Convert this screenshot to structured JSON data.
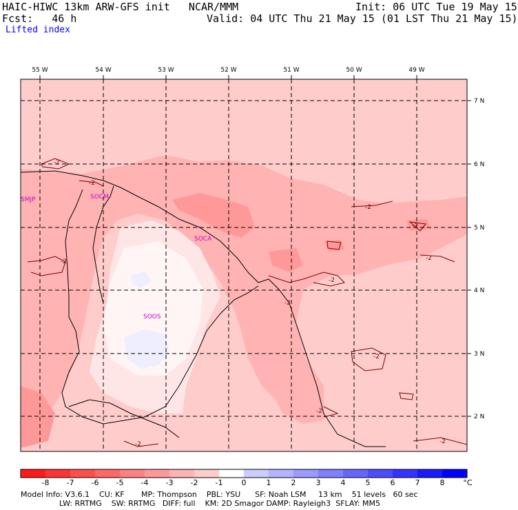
{
  "header": {
    "left_line1": "HAIC-HIWC 13km ARW-GFS init   NCAR/MMM",
    "left_line2": "Fcst:   46 h",
    "init": "Init: 06 UTC Tue 19 May 15",
    "valid": "Valid: 04 UTC Thu 21 May 15 (01 LST Thu 21 May 15)",
    "field": "Lifted index"
  },
  "map": {
    "lon_labels": [
      "55 W",
      "54 W",
      "53 W",
      "52 W",
      "51 W",
      "50 W",
      "49 W"
    ],
    "lat_labels": [
      "7 N",
      "6 N",
      "5 N",
      "4 N",
      "3 N",
      "2 N"
    ],
    "stations": [
      {
        "id": "SMJP"
      },
      {
        "id": "SOCM"
      },
      {
        "id": "SOCA"
      },
      {
        "id": "SOOS"
      }
    ],
    "contour_label": "-2"
  },
  "colorbar": {
    "labels": [
      "-8",
      "-7",
      "-6",
      "-5",
      "-4",
      "-3",
      "-2",
      "-1",
      "0",
      "1",
      "2",
      "3",
      "4",
      "5",
      "6",
      "7",
      "8"
    ],
    "unit": "°C",
    "colors": [
      "#ff1a1a",
      "#ff3333",
      "#ff4d4d",
      "#ff6666",
      "#ff8080",
      "#ff9999",
      "#ffb3b3",
      "#ffcccc",
      "#ffffff",
      "#ccccff",
      "#b3b3ff",
      "#9999ff",
      "#8080ff",
      "#6666ff",
      "#4d4dff",
      "#3333ff",
      "#1a1aff",
      "#0000ff"
    ]
  },
  "footer": {
    "line1": "Model Info: V3.6.1    CU: KF       MP: Thompson    PBL: YSU      SF: Noah LSM     13 km    51 levels   60 sec",
    "line2": "                LW: RRTMG    SW: RRTMG   DIFF: full    KM: 2D Smagor DAMP: Rayleigh3  SFLAY: MM5"
  }
}
